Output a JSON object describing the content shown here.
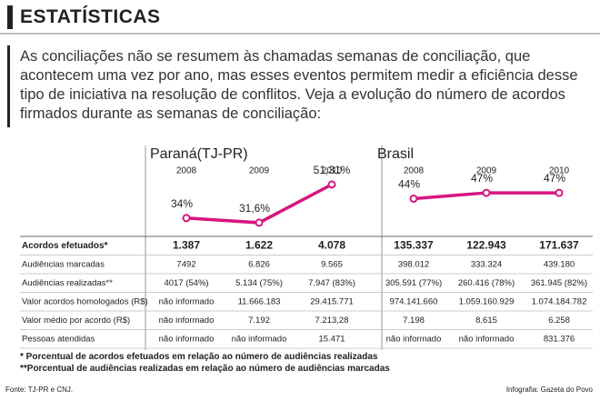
{
  "header": {
    "title": "ESTATÍSTICAS"
  },
  "intro": "As conciliações não se resumem às chamadas semanas de conciliação, que acontecem uma vez por ano, mas esses eventos permitem medir a eficiência desse tipo de iniciativa na resolução de conflitos. Veja a evolução do número de acordos firmados durante as semanas de conciliação:",
  "chart_data": [
    {
      "type": "line",
      "title": "Paraná(TJ-PR)",
      "categories": [
        "2008",
        "2009",
        "2010"
      ],
      "values": [
        34,
        31.6,
        51.31
      ],
      "value_labels": [
        "34%",
        "31,6%",
        "51,31%"
      ],
      "color": "#d6157f",
      "ylim": [
        25,
        55
      ]
    },
    {
      "type": "line",
      "title": "Brasil",
      "categories": [
        "2008",
        "2009",
        "2010"
      ],
      "values": [
        44,
        47,
        47
      ],
      "value_labels": [
        "44%",
        "47%",
        "47%"
      ],
      "color": "#d6157f",
      "ylim": [
        25,
        55
      ]
    }
  ],
  "table": {
    "rows": [
      [
        "Acordos efetuados*",
        "1.387",
        "1.622",
        "4.078",
        "135.337",
        "122.943",
        "171.637"
      ],
      [
        "Audiências marcadas",
        "7492",
        "6.826",
        "9.565",
        "398.012",
        "333.324",
        "439.180"
      ],
      [
        "Audiências realizadas**",
        "4017 (54%)",
        "5.134 (75%)",
        "7.947 (83%)",
        "305.591 (77%)",
        "260.416 (78%)",
        "361.945 (82%)"
      ],
      [
        "Valor acordos homologados (R$)",
        "não informado",
        "11.666.183",
        "29.415.771",
        "974.141.660",
        "1.059.160.929",
        "1.074.184.782"
      ],
      [
        "Valor médio por acordo (R$)",
        "não informado",
        "7.192",
        "7.213,28",
        "7.198",
        "8.615",
        "6.258"
      ],
      [
        "Pessoas atendidas",
        "não informado",
        "não informado",
        "15.471",
        "não informado",
        "não informado",
        "831.376"
      ]
    ]
  },
  "footnotes": [
    "* Porcentual de acordos efetuados em relação ao número de audiências realizadas",
    "**Porcentual de audiências realizadas em relação ao número de audiências marcadas"
  ],
  "source": "Fonte: TJ-PR e CNJ.",
  "credit": "Infografia: Gazeta do Povo"
}
